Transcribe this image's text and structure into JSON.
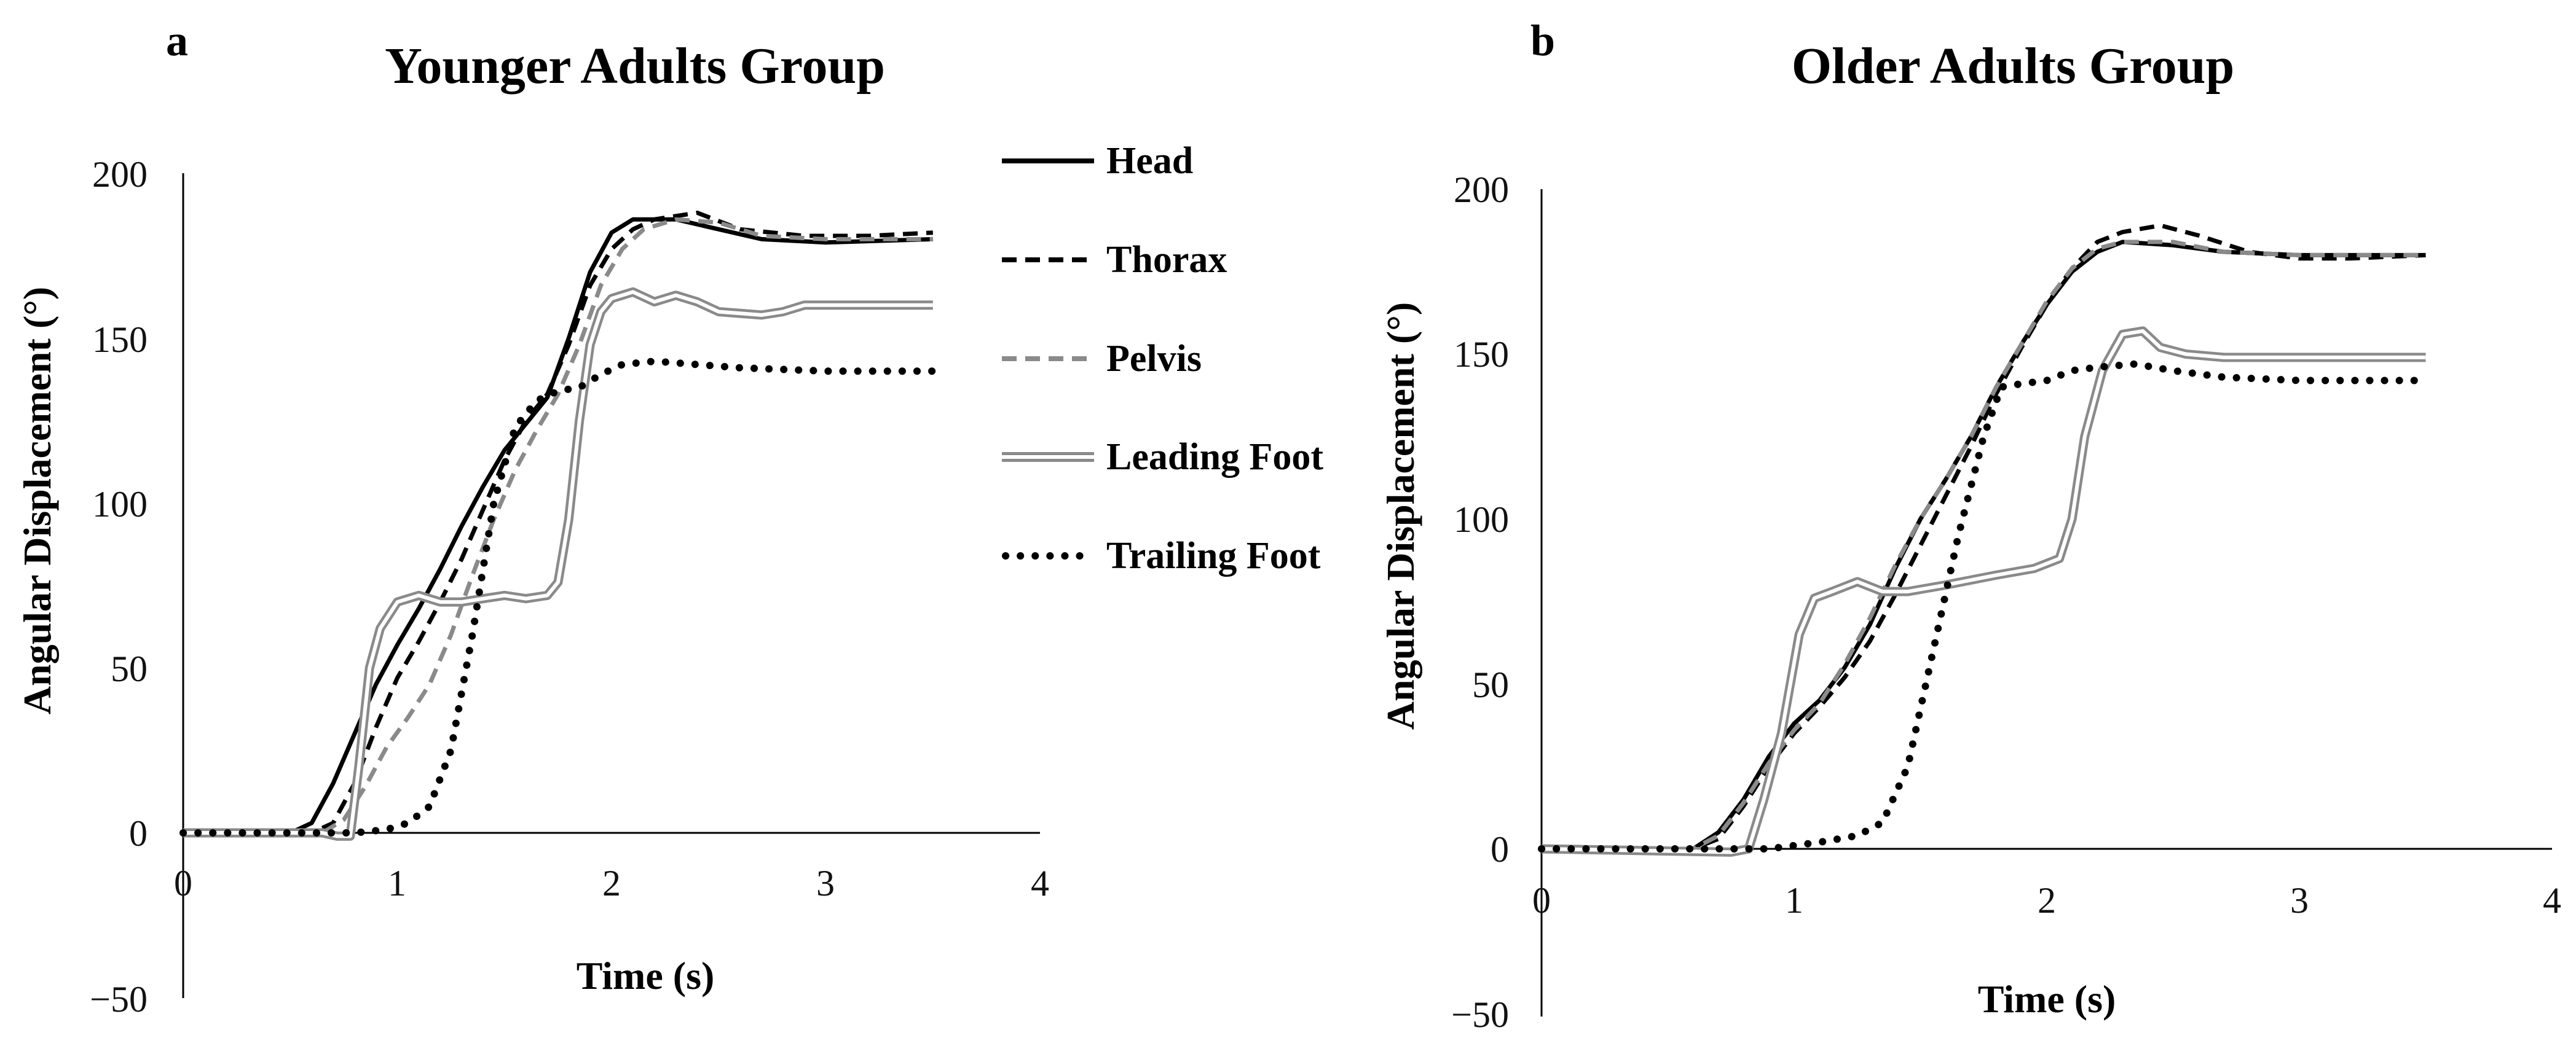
{
  "chart_data": [
    {
      "type": "line",
      "panel": "a",
      "title": "Younger Adults Group",
      "xlabel": "Time (s)",
      "ylabel": "Angular Displacement (°)",
      "xlim": [
        0,
        4
      ],
      "ylim": [
        -50,
        200
      ],
      "xticks": [
        "0",
        "1",
        "2",
        "3",
        "4"
      ],
      "yticks": [
        "−50",
        "0",
        "50",
        "100",
        "150",
        "200"
      ],
      "series": [
        {
          "name": "Head",
          "style": "solid",
          "points": [
            [
              0,
              0
            ],
            [
              0.5,
              0
            ],
            [
              0.6,
              3
            ],
            [
              0.7,
              15
            ],
            [
              0.8,
              30
            ],
            [
              0.9,
              45
            ],
            [
              1.0,
              57
            ],
            [
              1.1,
              68
            ],
            [
              1.2,
              80
            ],
            [
              1.3,
              93
            ],
            [
              1.4,
              105
            ],
            [
              1.5,
              116
            ],
            [
              1.6,
              124
            ],
            [
              1.7,
              132
            ],
            [
              1.8,
              150
            ],
            [
              1.9,
              170
            ],
            [
              2.0,
              182
            ],
            [
              2.1,
              186
            ],
            [
              2.3,
              186
            ],
            [
              2.5,
              183
            ],
            [
              2.7,
              180
            ],
            [
              3.0,
              179
            ],
            [
              3.5,
              180
            ]
          ]
        },
        {
          "name": "Thorax",
          "style": "dashed",
          "points": [
            [
              0,
              0
            ],
            [
              0.6,
              0
            ],
            [
              0.7,
              3
            ],
            [
              0.8,
              15
            ],
            [
              0.9,
              32
            ],
            [
              1.0,
              47
            ],
            [
              1.1,
              58
            ],
            [
              1.2,
              70
            ],
            [
              1.3,
              83
            ],
            [
              1.4,
              98
            ],
            [
              1.5,
              113
            ],
            [
              1.6,
              125
            ],
            [
              1.7,
              133
            ],
            [
              1.8,
              148
            ],
            [
              1.9,
              166
            ],
            [
              2.0,
              177
            ],
            [
              2.1,
              183
            ],
            [
              2.2,
              186
            ],
            [
              2.4,
              188
            ],
            [
              2.6,
              183
            ],
            [
              2.9,
              181
            ],
            [
              3.2,
              181
            ],
            [
              3.5,
              182
            ]
          ]
        },
        {
          "name": "Pelvis",
          "style": "dashed-gray",
          "points": [
            [
              0,
              0
            ],
            [
              0.65,
              0
            ],
            [
              0.75,
              4
            ],
            [
              0.85,
              14
            ],
            [
              0.95,
              26
            ],
            [
              1.05,
              35
            ],
            [
              1.15,
              45
            ],
            [
              1.25,
              60
            ],
            [
              1.35,
              78
            ],
            [
              1.45,
              95
            ],
            [
              1.55,
              110
            ],
            [
              1.65,
              122
            ],
            [
              1.75,
              133
            ],
            [
              1.85,
              148
            ],
            [
              1.95,
              166
            ],
            [
              2.05,
              177
            ],
            [
              2.15,
              183
            ],
            [
              2.3,
              186
            ],
            [
              2.5,
              185
            ],
            [
              2.7,
              181
            ],
            [
              3.0,
              180
            ],
            [
              3.5,
              180
            ]
          ]
        },
        {
          "name": "Leading Foot",
          "style": "double",
          "points": [
            [
              0,
              0
            ],
            [
              0.65,
              0
            ],
            [
              0.72,
              -1
            ],
            [
              0.78,
              -1
            ],
            [
              0.82,
              20
            ],
            [
              0.87,
              50
            ],
            [
              0.92,
              62
            ],
            [
              1.0,
              70
            ],
            [
              1.1,
              72
            ],
            [
              1.2,
              70
            ],
            [
              1.3,
              70
            ],
            [
              1.4,
              71
            ],
            [
              1.5,
              72
            ],
            [
              1.6,
              71
            ],
            [
              1.7,
              72
            ],
            [
              1.75,
              76
            ],
            [
              1.8,
              95
            ],
            [
              1.85,
              125
            ],
            [
              1.9,
              148
            ],
            [
              1.95,
              158
            ],
            [
              2.0,
              162
            ],
            [
              2.1,
              164
            ],
            [
              2.2,
              161
            ],
            [
              2.3,
              163
            ],
            [
              2.4,
              161
            ],
            [
              2.5,
              158
            ],
            [
              2.7,
              157
            ],
            [
              2.8,
              158
            ],
            [
              2.9,
              160
            ],
            [
              3.5,
              160
            ]
          ]
        },
        {
          "name": "Trailing Foot",
          "style": "dotted",
          "points": [
            [
              0,
              0
            ],
            [
              0.8,
              0
            ],
            [
              0.95,
              1
            ],
            [
              1.05,
              3
            ],
            [
              1.15,
              8
            ],
            [
              1.25,
              25
            ],
            [
              1.35,
              60
            ],
            [
              1.45,
              100
            ],
            [
              1.55,
              123
            ],
            [
              1.65,
              131
            ],
            [
              1.75,
              134
            ],
            [
              1.85,
              135
            ],
            [
              1.95,
              139
            ],
            [
              2.05,
              142
            ],
            [
              2.2,
              143
            ],
            [
              2.4,
              142
            ],
            [
              2.6,
              141
            ],
            [
              3.0,
              140
            ],
            [
              3.5,
              140
            ]
          ]
        }
      ]
    },
    {
      "type": "line",
      "panel": "b",
      "title": "Older Adults Group",
      "xlabel": "Time (s)",
      "ylabel": "Angular Displacement (°)",
      "xlim": [
        0,
        4
      ],
      "ylim": [
        -50,
        200
      ],
      "xticks": [
        "0",
        "1",
        "2",
        "3",
        "4"
      ],
      "yticks": [
        "−50",
        "0",
        "50",
        "100",
        "150",
        "200"
      ],
      "series": [
        {
          "name": "Head",
          "style": "solid",
          "points": [
            [
              0,
              0
            ],
            [
              0.6,
              0
            ],
            [
              0.7,
              5
            ],
            [
              0.8,
              15
            ],
            [
              0.9,
              28
            ],
            [
              1.0,
              38
            ],
            [
              1.1,
              45
            ],
            [
              1.2,
              55
            ],
            [
              1.3,
              68
            ],
            [
              1.4,
              85
            ],
            [
              1.5,
              100
            ],
            [
              1.6,
              112
            ],
            [
              1.7,
              125
            ],
            [
              1.8,
              140
            ],
            [
              1.9,
              153
            ],
            [
              2.0,
              165
            ],
            [
              2.1,
              175
            ],
            [
              2.2,
              181
            ],
            [
              2.3,
              184
            ],
            [
              2.5,
              183
            ],
            [
              2.7,
              181
            ],
            [
              3.0,
              180
            ],
            [
              3.5,
              180
            ]
          ]
        },
        {
          "name": "Thorax",
          "style": "dashed",
          "points": [
            [
              0,
              0
            ],
            [
              0.6,
              0
            ],
            [
              0.7,
              3
            ],
            [
              0.8,
              13
            ],
            [
              0.9,
              25
            ],
            [
              1.0,
              35
            ],
            [
              1.1,
              43
            ],
            [
              1.2,
              52
            ],
            [
              1.3,
              63
            ],
            [
              1.4,
              77
            ],
            [
              1.5,
              92
            ],
            [
              1.6,
              107
            ],
            [
              1.7,
              122
            ],
            [
              1.8,
              138
            ],
            [
              1.9,
              152
            ],
            [
              2.0,
              165
            ],
            [
              2.1,
              176
            ],
            [
              2.2,
              184
            ],
            [
              2.3,
              187
            ],
            [
              2.45,
              189
            ],
            [
              2.6,
              186
            ],
            [
              2.8,
              181
            ],
            [
              3.0,
              179
            ],
            [
              3.2,
              179
            ],
            [
              3.5,
              180
            ]
          ]
        },
        {
          "name": "Pelvis",
          "style": "dashed-gray",
          "points": [
            [
              0,
              0
            ],
            [
              0.6,
              0
            ],
            [
              0.7,
              4
            ],
            [
              0.8,
              14
            ],
            [
              0.9,
              26
            ],
            [
              1.0,
              36
            ],
            [
              1.1,
              44
            ],
            [
              1.2,
              56
            ],
            [
              1.3,
              70
            ],
            [
              1.4,
              86
            ],
            [
              1.5,
              100
            ],
            [
              1.6,
              112
            ],
            [
              1.7,
              125
            ],
            [
              1.8,
              140
            ],
            [
              1.9,
              153
            ],
            [
              2.0,
              166
            ],
            [
              2.1,
              176
            ],
            [
              2.2,
              182
            ],
            [
              2.3,
              184
            ],
            [
              2.5,
              184
            ],
            [
              2.7,
              181
            ],
            [
              3.0,
              180
            ],
            [
              3.5,
              180
            ]
          ]
        },
        {
          "name": "Leading Foot",
          "style": "double",
          "points": [
            [
              0,
              0
            ],
            [
              0.75,
              -1
            ],
            [
              0.82,
              0
            ],
            [
              0.88,
              15
            ],
            [
              0.95,
              35
            ],
            [
              1.02,
              65
            ],
            [
              1.08,
              76
            ],
            [
              1.15,
              78
            ],
            [
              1.25,
              81
            ],
            [
              1.35,
              78
            ],
            [
              1.45,
              78
            ],
            [
              1.6,
              80
            ],
            [
              1.8,
              83
            ],
            [
              1.95,
              85
            ],
            [
              2.05,
              88
            ],
            [
              2.1,
              100
            ],
            [
              2.15,
              125
            ],
            [
              2.22,
              145
            ],
            [
              2.3,
              156
            ],
            [
              2.38,
              157
            ],
            [
              2.45,
              152
            ],
            [
              2.55,
              150
            ],
            [
              2.7,
              149
            ],
            [
              3.0,
              149
            ],
            [
              3.5,
              149
            ]
          ]
        },
        {
          "name": "Trailing Foot",
          "style": "dotted",
          "points": [
            [
              0,
              0
            ],
            [
              0.9,
              0
            ],
            [
              1.1,
              2
            ],
            [
              1.25,
              4
            ],
            [
              1.35,
              8
            ],
            [
              1.45,
              25
            ],
            [
              1.55,
              60
            ],
            [
              1.65,
              95
            ],
            [
              1.75,
              125
            ],
            [
              1.82,
              140
            ],
            [
              1.9,
              141
            ],
            [
              2.0,
              142
            ],
            [
              2.1,
              145
            ],
            [
              2.2,
              146
            ],
            [
              2.35,
              147
            ],
            [
              2.5,
              145
            ],
            [
              2.7,
              143
            ],
            [
              3.0,
              142
            ],
            [
              3.5,
              142
            ]
          ]
        }
      ]
    }
  ]
}
